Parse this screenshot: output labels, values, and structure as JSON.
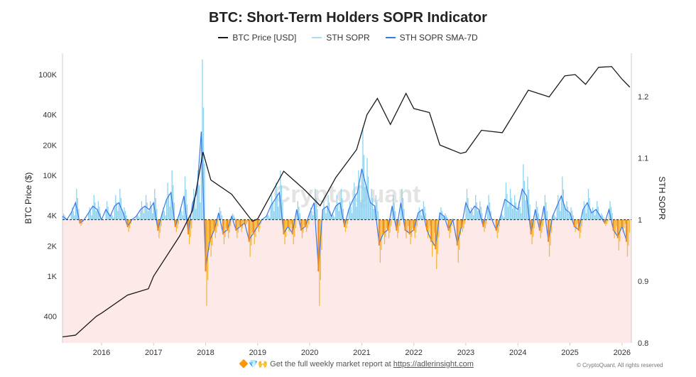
{
  "footer": {
    "emoji": "🔶💎🙌",
    "text": "Get the full weekly market report at",
    "link": "https://adlerinsight.com",
    "copyright": "© CryptoQuant. All rights reserved"
  },
  "watermark": "CryptoQuant",
  "colors": {
    "price": "#1a1a1a",
    "sopr": "#8fd3f0",
    "sma": "#3b78e7",
    "below": "#f08a24",
    "below_fill": "#fde9e7"
  },
  "chart_data": {
    "type": "line",
    "title": "BTC: Short-Term Holders SOPR Indicator",
    "legend": [
      "BTC Price [USD]",
      "STH SOPR",
      "STH SOPR SMA-7D"
    ],
    "legend_position": "top",
    "ylabel_left": "BTC Price ($)",
    "ylabel_right": "STH SOPR",
    "x_ticks": [
      "2016",
      "2017",
      "2018",
      "2019",
      "2020",
      "2021",
      "2022",
      "2023",
      "2024",
      "2025",
      "2026"
    ],
    "xlim": [
      2015.25,
      2026.18
    ],
    "y_left_scale": "log",
    "y_left_ticks": [
      "400",
      "1K",
      "2K",
      "4K",
      "10K",
      "20K",
      "40K",
      "100K"
    ],
    "y_left_tick_values": [
      400,
      1000,
      2000,
      4000,
      10000,
      20000,
      40000,
      100000
    ],
    "y_right_ticks": [
      "0.8",
      "0.9",
      "1",
      "1.1",
      "1.2"
    ],
    "y_right_lim": [
      0.8,
      1.27
    ],
    "reference_line": 1,
    "price": {
      "x": [
        2015.25,
        2015.5,
        2015.9,
        2016.0,
        2016.5,
        2016.9,
        2017.0,
        2017.5,
        2017.75,
        2017.95,
        2018.1,
        2018.5,
        2018.9,
        2019.0,
        2019.5,
        2019.9,
        2020.2,
        2020.5,
        2020.9,
        2021.1,
        2021.3,
        2021.55,
        2021.85,
        2022.0,
        2022.3,
        2022.5,
        2022.9,
        2023.0,
        2023.3,
        2023.7,
        2023.95,
        2024.2,
        2024.6,
        2024.9,
        2025.1,
        2025.3,
        2025.55,
        2025.8,
        2026.0,
        2026.15
      ],
      "y": [
        250,
        260,
        400,
        430,
        650,
        750,
        1000,
        2500,
        4500,
        17000,
        9000,
        6500,
        3500,
        3700,
        11000,
        7200,
        5000,
        9500,
        18000,
        40000,
        58000,
        32000,
        65000,
        46000,
        42000,
        20000,
        16500,
        17000,
        28000,
        26500,
        43000,
        70000,
        60000,
        97000,
        100000,
        80000,
        118000,
        120000,
        90000,
        75000
      ]
    },
    "sopr_monthly_start": 2015.25,
    "sopr_monthly": [
      1.01,
      1.0,
      1.02,
      1.05,
      0.99,
      1.0,
      1.02,
      1.04,
      1.03,
      1.0,
      1.03,
      1.01,
      1.04,
      1.05,
      1.02,
      0.98,
      1.0,
      1.01,
      1.03,
      1.04,
      1.03,
      1.05,
      0.97,
      1.02,
      1.06,
      1.08,
      0.98,
      1.02,
      1.07,
      0.96,
      1.05,
      1.08,
      1.26,
      0.86,
      0.94,
      0.97,
      1.02,
      0.96,
      0.97,
      1.01,
      0.97,
      0.98,
      0.99,
      0.94,
      0.96,
      0.98,
      1.0,
      1.01,
      1.04,
      1.06,
      1.08,
      0.96,
      0.98,
      0.96,
      1.03,
      0.97,
      0.98,
      1.02,
      1.05,
      0.86,
      1.03,
      1.04,
      1.01,
      1.04,
      1.05,
      0.98,
      1.03,
      1.06,
      1.08,
      1.15,
      1.1,
      1.05,
      1.04,
      0.93,
      0.96,
      0.97,
      1.04,
      0.97,
      1.05,
      0.97,
      0.96,
      0.97,
      1.02,
      1.03,
      0.97,
      0.94,
      0.92,
      1.02,
      1.01,
      0.97,
      1.0,
      0.93,
      0.98,
      1.05,
      1.02,
      1.04,
      1.03,
      0.98,
      1.04,
      1.0,
      0.97,
      1.01,
      1.06,
      1.05,
      1.04,
      1.03,
      1.09,
      1.07,
      0.96,
      1.03,
      0.97,
      1.04,
      0.94,
      1.01,
      1.04,
      1.07,
      1.03,
      1.02,
      0.98,
      0.97,
      1.03,
      1.05,
      1.02,
      1.03,
      1.01,
      0.99,
      1.03,
      0.97,
      0.95,
      0.98,
      0.94
    ]
  }
}
